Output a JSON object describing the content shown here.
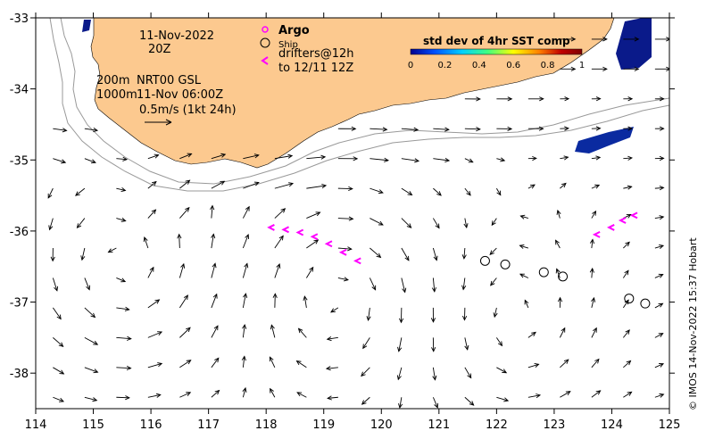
{
  "map": {
    "lon_range": [
      114,
      125
    ],
    "lat_range": [
      -38.5,
      -33
    ],
    "x_ticks": [
      "114",
      "115",
      "116",
      "117",
      "118",
      "119",
      "120",
      "121",
      "122",
      "123",
      "124",
      "125"
    ],
    "y_ticks": [
      "-33",
      "-34",
      "-35",
      "-36",
      "-37",
      "-38"
    ]
  },
  "annotations": {
    "date": "11-Nov-2022",
    "hour": "20Z",
    "contours": "200m",
    "contours2": "1000m",
    "product": "NRT00 GSL",
    "product_time": "11-Nov 06:00Z",
    "scale_label": "0.5m/s (1kt 24h)",
    "argo_label": "Argo",
    "ship_label": "Ship",
    "drifters_line1": "drifters@12h",
    "drifters_line2": "to 12/11 12Z"
  },
  "colorbar": {
    "title": "std dev of 4hr SST comp",
    "ticks": [
      "0",
      "0.2",
      "0.4",
      "0.6",
      "0.8",
      "1"
    ],
    "colors": [
      "#00008f",
      "#0050ff",
      "#00d0ff",
      "#40ff80",
      "#ffff00",
      "#ff8000",
      "#c00000",
      "#800000"
    ]
  },
  "legend_colors": {
    "land": "#fcc98f",
    "argo": "#ff00ff",
    "drifter": "#ff00ff",
    "sst_low": "#0a1a8a",
    "isobath": "#999999"
  },
  "ships": [
    {
      "lon": 121.8,
      "lat": -36.42
    },
    {
      "lon": 122.15,
      "lat": -36.47
    },
    {
      "lon": 122.82,
      "lat": -36.58
    },
    {
      "lon": 123.15,
      "lat": -36.64
    },
    {
      "lon": 124.3,
      "lat": -36.95
    },
    {
      "lon": 124.58,
      "lat": -37.02
    }
  ],
  "credit": "© IMOS 14-Nov-2022 15:37 Hobart"
}
